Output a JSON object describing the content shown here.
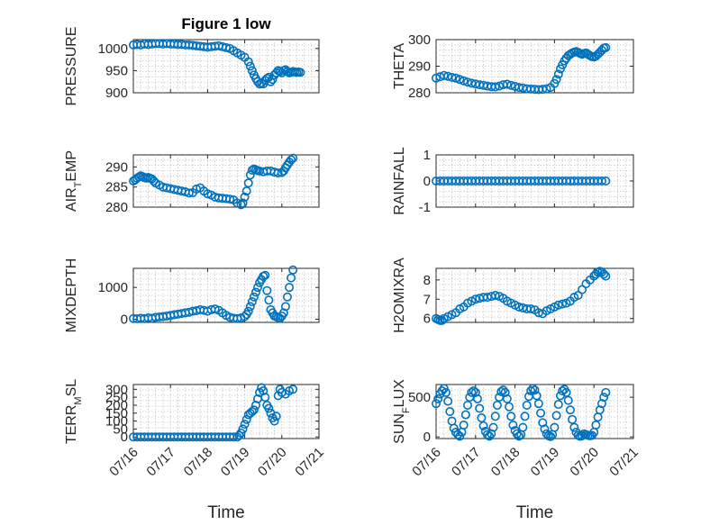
{
  "figure_title": "Figure 1 low",
  "x_axis_label": "Time",
  "x_tick_labels": [
    "07/16",
    "07/17",
    "07/18",
    "07/19",
    "07/20",
    "07/21"
  ],
  "marker_color": "#0072bd",
  "chart_data": [
    {
      "type": "scatter",
      "id": "pressure",
      "ylabel_parts": [
        [
          "PRESSURE",
          ""
        ]
      ],
      "title": "Figure 1 low",
      "xlim": [
        0,
        5
      ],
      "ylim": [
        900,
        1020
      ],
      "yticks": [
        900,
        950,
        1000
      ],
      "x": [
        0.0,
        0.1,
        0.2,
        0.3,
        0.4,
        0.5,
        0.6,
        0.7,
        0.8,
        0.9,
        1.0,
        1.1,
        1.2,
        1.3,
        1.4,
        1.5,
        1.6,
        1.7,
        1.8,
        1.9,
        2.0,
        2.1,
        2.2,
        2.3,
        2.4,
        2.5,
        2.6,
        2.7,
        2.8,
        2.9,
        3.0,
        3.1,
        3.15,
        3.2,
        3.25,
        3.3,
        3.35,
        3.4,
        3.45,
        3.5,
        3.55,
        3.6,
        3.65,
        3.7,
        3.75,
        3.8,
        3.85,
        3.9,
        3.95,
        4.0,
        4.05,
        4.1,
        4.15,
        4.2,
        4.25,
        4.3,
        4.35,
        4.4,
        4.45,
        4.5
      ],
      "y": [
        1008,
        1009,
        1008,
        1010,
        1009,
        1010,
        1011,
        1011,
        1010,
        1011,
        1010,
        1010,
        1009,
        1009,
        1008,
        1008,
        1007,
        1006,
        1005,
        1004,
        1003,
        1004,
        1005,
        1006,
        1004,
        1002,
        1000,
        995,
        990,
        985,
        980,
        970,
        960,
        950,
        940,
        932,
        925,
        920,
        922,
        920,
        928,
        932,
        935,
        925,
        930,
        940,
        945,
        950,
        948,
        945,
        950,
        952,
        948,
        945,
        946,
        948,
        947,
        946,
        947,
        946
      ]
    },
    {
      "type": "scatter",
      "id": "theta",
      "ylabel_parts": [
        [
          "THETA",
          ""
        ]
      ],
      "xlim": [
        0,
        5
      ],
      "ylim": [
        280,
        300
      ],
      "yticks": [
        280,
        290,
        300
      ],
      "x": [
        0.0,
        0.1,
        0.2,
        0.3,
        0.4,
        0.5,
        0.6,
        0.7,
        0.8,
        0.9,
        1.0,
        1.1,
        1.2,
        1.3,
        1.4,
        1.5,
        1.6,
        1.7,
        1.8,
        1.9,
        2.0,
        2.1,
        2.2,
        2.3,
        2.4,
        2.5,
        2.6,
        2.7,
        2.8,
        2.9,
        3.0,
        3.05,
        3.1,
        3.15,
        3.2,
        3.25,
        3.3,
        3.35,
        3.4,
        3.45,
        3.5,
        3.55,
        3.6,
        3.65,
        3.7,
        3.75,
        3.8,
        3.85,
        3.9,
        3.95,
        4.0,
        4.05,
        4.1,
        4.15,
        4.2,
        4.25,
        4.3
      ],
      "y": [
        285.5,
        286,
        286.5,
        286.2,
        285.8,
        285.5,
        285,
        284.5,
        284,
        283.6,
        283.3,
        283,
        282.8,
        282.5,
        282.3,
        282.2,
        282.5,
        283,
        283.2,
        282.8,
        282.4,
        282,
        281.8,
        281.5,
        281.4,
        281.3,
        281.2,
        281.3,
        281.5,
        282,
        283.5,
        285,
        287,
        289,
        290.5,
        292,
        293,
        294,
        294.5,
        295,
        295.3,
        295.5,
        295.2,
        294.8,
        294.5,
        294.8,
        295,
        294.5,
        294,
        293.6,
        293.5,
        293.8,
        294.5,
        295.2,
        296,
        296.8,
        297
      ]
    },
    {
      "type": "scatter",
      "id": "air_temp",
      "ylabel_parts": [
        [
          "AIR",
          ""
        ],
        [
          "T",
          "sub"
        ],
        [
          "EMP",
          ""
        ]
      ],
      "xlim": [
        0,
        5
      ],
      "ylim": [
        280,
        293
      ],
      "yticks": [
        280,
        285,
        290
      ],
      "x": [
        0.0,
        0.05,
        0.1,
        0.15,
        0.2,
        0.25,
        0.3,
        0.35,
        0.4,
        0.45,
        0.5,
        0.55,
        0.6,
        0.7,
        0.8,
        0.9,
        1.0,
        1.1,
        1.2,
        1.3,
        1.4,
        1.5,
        1.6,
        1.7,
        1.8,
        1.9,
        2.0,
        2.1,
        2.2,
        2.3,
        2.4,
        2.5,
        2.6,
        2.7,
        2.8,
        2.9,
        2.95,
        3.0,
        3.05,
        3.1,
        3.15,
        3.2,
        3.25,
        3.3,
        3.35,
        3.4,
        3.5,
        3.6,
        3.7,
        3.8,
        3.9,
        4.0,
        4.05,
        4.1,
        4.15,
        4.2,
        4.25,
        4.3
      ],
      "y": [
        286.5,
        286.8,
        287.2,
        287.5,
        287.8,
        287.6,
        287.3,
        287.2,
        287.4,
        287.2,
        287,
        286.5,
        286,
        285.5,
        285,
        284.8,
        284.6,
        284.4,
        284.2,
        284,
        283.8,
        283.5,
        283.6,
        284.5,
        284.8,
        284,
        283.3,
        283,
        282.5,
        282.3,
        282.2,
        282.1,
        282,
        281.8,
        281,
        280.6,
        281,
        282.5,
        284,
        286,
        288,
        289.2,
        289.5,
        289.3,
        289.1,
        289,
        288.8,
        289,
        289,
        288.7,
        288.5,
        288.6,
        289,
        289.8,
        290.5,
        291.2,
        291.8,
        292.2
      ]
    },
    {
      "type": "scatter",
      "id": "rainfall",
      "ylabel_parts": [
        [
          "RAINFALL",
          ""
        ]
      ],
      "xlim": [
        0,
        5
      ],
      "ylim": [
        -1,
        1
      ],
      "yticks": [
        -1,
        0,
        1
      ],
      "x": [
        0.0,
        0.1,
        0.2,
        0.3,
        0.4,
        0.5,
        0.6,
        0.7,
        0.8,
        0.9,
        1.0,
        1.1,
        1.2,
        1.3,
        1.4,
        1.5,
        1.6,
        1.7,
        1.8,
        1.9,
        2.0,
        2.1,
        2.2,
        2.3,
        2.4,
        2.5,
        2.6,
        2.7,
        2.8,
        2.9,
        3.0,
        3.1,
        3.2,
        3.3,
        3.4,
        3.5,
        3.6,
        3.7,
        3.8,
        3.9,
        4.0,
        4.1,
        4.2,
        4.3
      ],
      "y": [
        0,
        0,
        0,
        0,
        0,
        0,
        0,
        0,
        0,
        0,
        0,
        0,
        0,
        0,
        0,
        0,
        0,
        0,
        0,
        0,
        0,
        0,
        0,
        0,
        0,
        0,
        0,
        0,
        0,
        0,
        0,
        0,
        0,
        0,
        0,
        0,
        0,
        0,
        0,
        0,
        0,
        0,
        0,
        0
      ]
    },
    {
      "type": "scatter",
      "id": "mixdepth",
      "ylabel_parts": [
        [
          "MIXDEPTH",
          ""
        ]
      ],
      "xlim": [
        0,
        5
      ],
      "ylim": [
        -100,
        1600
      ],
      "yticks": [
        0,
        1000
      ],
      "x": [
        0.0,
        0.1,
        0.2,
        0.3,
        0.4,
        0.5,
        0.6,
        0.7,
        0.8,
        0.9,
        1.0,
        1.1,
        1.2,
        1.3,
        1.4,
        1.5,
        1.6,
        1.7,
        1.8,
        1.9,
        2.0,
        2.1,
        2.2,
        2.3,
        2.4,
        2.5,
        2.6,
        2.7,
        2.8,
        2.9,
        3.0,
        3.05,
        3.1,
        3.15,
        3.2,
        3.25,
        3.3,
        3.35,
        3.4,
        3.45,
        3.5,
        3.55,
        3.6,
        3.65,
        3.7,
        3.75,
        3.8,
        3.85,
        3.9,
        3.95,
        4.0,
        4.05,
        4.1,
        4.15,
        4.2,
        4.25,
        4.3
      ],
      "y": [
        20,
        15,
        30,
        20,
        40,
        30,
        60,
        70,
        80,
        100,
        120,
        140,
        160,
        180,
        200,
        220,
        250,
        270,
        300,
        280,
        250,
        300,
        320,
        280,
        200,
        120,
        60,
        30,
        20,
        40,
        80,
        150,
        250,
        400,
        550,
        700,
        850,
        1000,
        1150,
        1250,
        1350,
        1380,
        900,
        600,
        300,
        200,
        100,
        80,
        50,
        30,
        100,
        200,
        400,
        700,
        1000,
        1300,
        1550
      ]
    },
    {
      "type": "scatter",
      "id": "h2omixra",
      "ylabel_parts": [
        [
          "H2OMIXRA",
          ""
        ]
      ],
      "xlim": [
        0,
        5
      ],
      "ylim": [
        5.8,
        8.6
      ],
      "yticks": [
        6,
        7,
        8
      ],
      "x": [
        0.0,
        0.05,
        0.1,
        0.15,
        0.2,
        0.3,
        0.4,
        0.5,
        0.6,
        0.7,
        0.8,
        0.9,
        1.0,
        1.1,
        1.2,
        1.3,
        1.4,
        1.5,
        1.6,
        1.7,
        1.8,
        1.9,
        2.0,
        2.1,
        2.2,
        2.3,
        2.4,
        2.5,
        2.6,
        2.7,
        2.8,
        2.9,
        3.0,
        3.1,
        3.2,
        3.3,
        3.4,
        3.5,
        3.6,
        3.7,
        3.8,
        3.9,
        4.0,
        4.05,
        4.1,
        4.15,
        4.2,
        4.25,
        4.3
      ],
      "y": [
        6.0,
        5.95,
        5.9,
        5.9,
        6.0,
        6.1,
        6.2,
        6.3,
        6.5,
        6.6,
        6.8,
        6.9,
        7.0,
        7.05,
        7.1,
        7.1,
        7.15,
        7.2,
        7.15,
        7.05,
        6.9,
        6.8,
        6.7,
        6.6,
        6.55,
        6.5,
        6.5,
        6.45,
        6.3,
        6.25,
        6.4,
        6.5,
        6.6,
        6.7,
        6.75,
        6.8,
        6.9,
        7.1,
        7.2,
        7.5,
        7.8,
        8.0,
        8.2,
        8.3,
        8.4,
        8.45,
        8.4,
        8.3,
        8.2
      ]
    },
    {
      "type": "scatter",
      "id": "terr_msl",
      "ylabel_parts": [
        [
          "TERR",
          ""
        ],
        [
          "M",
          "sub"
        ],
        [
          "SL",
          ""
        ]
      ],
      "xlim": [
        0,
        5
      ],
      "ylim": [
        -10,
        330
      ],
      "yticks": [
        0,
        50,
        100,
        150,
        200,
        250,
        300
      ],
      "x": [
        0.0,
        0.1,
        0.2,
        0.3,
        0.4,
        0.5,
        0.6,
        0.7,
        0.8,
        0.9,
        1.0,
        1.1,
        1.2,
        1.3,
        1.4,
        1.5,
        1.6,
        1.7,
        1.8,
        1.9,
        2.0,
        2.1,
        2.2,
        2.3,
        2.4,
        2.5,
        2.6,
        2.7,
        2.8,
        2.85,
        2.9,
        2.95,
        3.0,
        3.05,
        3.1,
        3.15,
        3.2,
        3.25,
        3.3,
        3.35,
        3.4,
        3.45,
        3.5,
        3.55,
        3.6,
        3.65,
        3.7,
        3.75,
        3.8,
        3.85,
        3.9,
        3.95,
        4.0,
        4.1,
        4.2,
        4.3
      ],
      "y": [
        0,
        0,
        0,
        0,
        0,
        0,
        0,
        0,
        0,
        0,
        0,
        0,
        0,
        0,
        0,
        0,
        0,
        0,
        0,
        0,
        0,
        0,
        0,
        0,
        0,
        0,
        0,
        0,
        0,
        10,
        25,
        50,
        80,
        110,
        140,
        150,
        160,
        170,
        200,
        240,
        280,
        310,
        290,
        250,
        200,
        180,
        150,
        120,
        100,
        130,
        260,
        300,
        280,
        270,
        290,
        300
      ]
    },
    {
      "type": "scatter",
      "id": "sun_flux",
      "ylabel_parts": [
        [
          "SUN",
          ""
        ],
        [
          "F",
          "sub"
        ],
        [
          "LUX",
          ""
        ]
      ],
      "xlim": [
        0,
        5
      ],
      "ylim": [
        -20,
        660
      ],
      "yticks": [
        0,
        500
      ],
      "x": [
        0.0,
        0.05,
        0.1,
        0.15,
        0.2,
        0.25,
        0.3,
        0.35,
        0.4,
        0.45,
        0.5,
        0.55,
        0.6,
        0.65,
        0.7,
        0.75,
        0.8,
        0.85,
        0.9,
        0.95,
        1.0,
        1.05,
        1.1,
        1.15,
        1.2,
        1.25,
        1.3,
        1.35,
        1.4,
        1.45,
        1.5,
        1.55,
        1.6,
        1.65,
        1.7,
        1.75,
        1.8,
        1.85,
        1.9,
        1.95,
        2.0,
        2.05,
        2.1,
        2.15,
        2.2,
        2.25,
        2.3,
        2.35,
        2.4,
        2.45,
        2.5,
        2.55,
        2.6,
        2.65,
        2.7,
        2.75,
        2.8,
        2.85,
        2.9,
        2.95,
        3.0,
        3.05,
        3.1,
        3.15,
        3.2,
        3.25,
        3.3,
        3.35,
        3.4,
        3.45,
        3.5,
        3.55,
        3.6,
        3.65,
        3.7,
        3.75,
        3.8,
        3.85,
        3.9,
        3.95,
        4.0,
        4.05,
        4.1,
        4.15,
        4.2,
        4.25,
        4.3
      ],
      "y": [
        420,
        480,
        540,
        580,
        610,
        560,
        450,
        320,
        200,
        110,
        60,
        30,
        10,
        60,
        150,
        280,
        400,
        500,
        560,
        580,
        560,
        480,
        360,
        240,
        140,
        70,
        30,
        10,
        40,
        120,
        260,
        400,
        500,
        570,
        590,
        560,
        480,
        380,
        260,
        150,
        80,
        40,
        10,
        30,
        120,
        260,
        400,
        510,
        580,
        610,
        590,
        520,
        420,
        300,
        180,
        100,
        40,
        15,
        5,
        30,
        120,
        270,
        410,
        520,
        580,
        600,
        560,
        460,
        340,
        220,
        120,
        60,
        20,
        8,
        15,
        40,
        30,
        20,
        15,
        20,
        60,
        150,
        250,
        340,
        420,
        500,
        560
      ]
    }
  ]
}
